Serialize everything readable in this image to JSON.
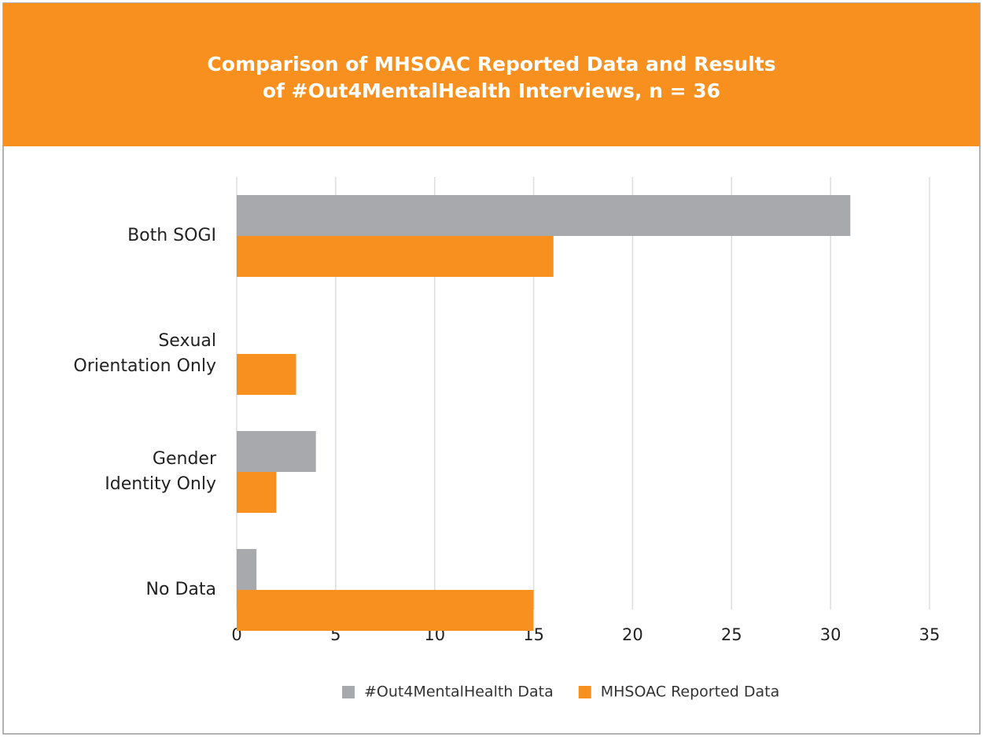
{
  "chart_data": {
    "type": "bar",
    "orientation": "horizontal",
    "title": "Comparison of MHSOAC Reported Data and Results\nof #Out4MentalHealth Interviews, n = 36",
    "categories": [
      "Both SOGI",
      "Sexual\nOrientation Only",
      "Gender\nIdentity Only",
      "No Data"
    ],
    "series": [
      {
        "name": "#Out4MentalHealth Data",
        "color": "#a7a9ac",
        "values": [
          31,
          0,
          4,
          1
        ]
      },
      {
        "name": "MHSOAC Reported Data",
        "color": "#f7901e",
        "values": [
          16,
          3,
          2,
          15
        ]
      }
    ],
    "xlim": [
      0,
      35
    ],
    "xticks": [
      0,
      5,
      10,
      15,
      20,
      25,
      30,
      35
    ],
    "grid": true,
    "legend": "bottom"
  }
}
